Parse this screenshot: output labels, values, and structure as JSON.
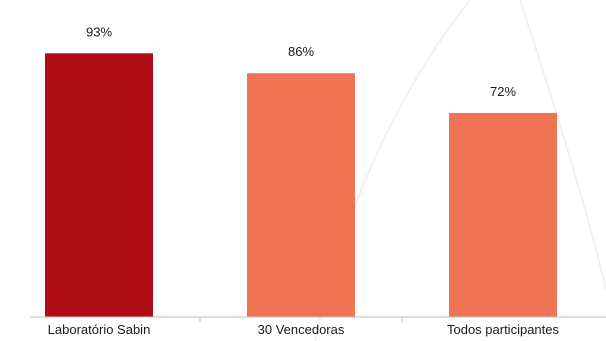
{
  "chart_data": {
    "type": "bar",
    "title": "",
    "xlabel": "",
    "ylabel": "",
    "categories": [
      "Laboratório Sabin",
      "30 Vencedoras",
      "Todos participantes"
    ],
    "values": [
      93,
      86,
      72
    ],
    "value_labels": [
      "93%",
      "86%",
      "72%"
    ],
    "colors": [
      "#b00e16",
      "#f07453",
      "#f07453"
    ],
    "ylim": [
      0,
      100
    ],
    "grid": false,
    "legend": "none"
  }
}
